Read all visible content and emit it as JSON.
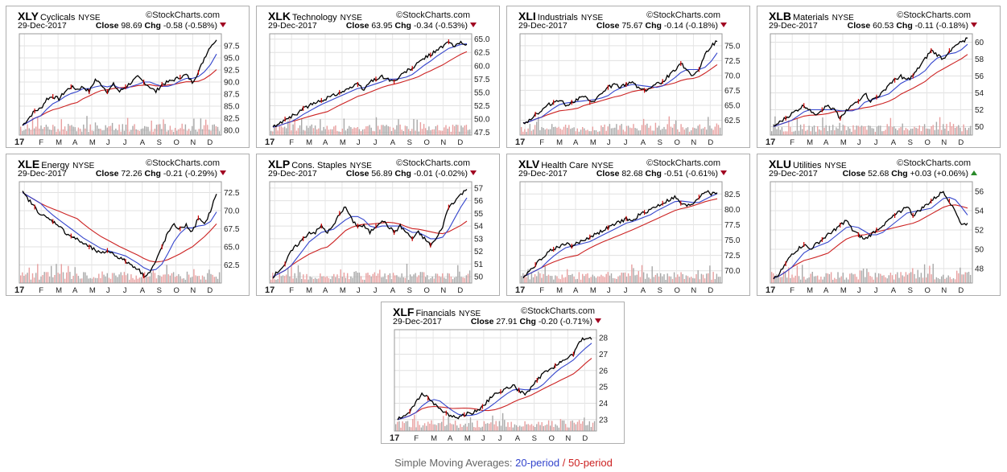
{
  "brand": "StockCharts.com",
  "legend": {
    "prefix": "Simple Moving Averages:",
    "fast": "20-period",
    "sep": "/",
    "slow": "50-period",
    "fast_color": "#3344cc",
    "slow_color": "#cc2222"
  },
  "x_labels": [
    "17",
    "F",
    "M",
    "A",
    "M",
    "J",
    "J",
    "A",
    "S",
    "O",
    "N",
    "D"
  ],
  "chart_data": [
    {
      "type": "line",
      "symbol": "XLY",
      "name": "Cyclicals",
      "exchange": "NYSE",
      "date": "29-Dec-2017",
      "close": "98.69",
      "change": "-0.58 (-0.58%)",
      "direction": "down",
      "ylim": [
        79,
        100
      ],
      "y_ticks": [
        "97.5",
        "95.0",
        "92.5",
        "90.0",
        "87.5",
        "85.0",
        "82.5",
        "80.0"
      ],
      "price": [
        81,
        82.5,
        84,
        84.5,
        86.5,
        87,
        86.5,
        88,
        89,
        88.5,
        89,
        88,
        90.5,
        89.5,
        88,
        89.5,
        88,
        89,
        90,
        91,
        90,
        89,
        88,
        89.5,
        90,
        90.5,
        91,
        91.5,
        90,
        92,
        95,
        97.5,
        98.7
      ]
    },
    {
      "type": "line",
      "symbol": "XLK",
      "name": "Technology",
      "exchange": "NYSE",
      "date": "29-Dec-2017",
      "close": "63.95",
      "change": "-0.34 (-0.53%)",
      "direction": "down",
      "ylim": [
        47,
        66
      ],
      "y_ticks": [
        "65.0",
        "62.5",
        "60.0",
        "57.5",
        "55.0",
        "52.5",
        "50.0",
        "47.5"
      ],
      "price": [
        48.5,
        49,
        50,
        50.5,
        51,
        52,
        52.5,
        53,
        53.5,
        54,
        54.5,
        55,
        55.5,
        56,
        56.5,
        55.5,
        57,
        57.5,
        58,
        57.5,
        57,
        58,
        59,
        59.5,
        60.5,
        61.5,
        62,
        63,
        63.5,
        64.5,
        63.5,
        64.5,
        64
      ]
    },
    {
      "type": "line",
      "symbol": "XLI",
      "name": "Industrials",
      "exchange": "NYSE",
      "date": "29-Dec-2017",
      "close": "75.67",
      "change": "-0.14 (-0.18%)",
      "direction": "down",
      "ylim": [
        60,
        77
      ],
      "y_ticks": [
        "75.0",
        "72.5",
        "70.0",
        "67.5",
        "65.0",
        "62.5"
      ],
      "price": [
        62,
        62.5,
        63.5,
        64,
        65,
        65.5,
        66,
        65,
        65.5,
        66,
        66.5,
        65.5,
        66,
        67,
        68,
        68.5,
        68,
        68.5,
        69,
        68,
        67.5,
        68,
        68.5,
        69,
        70,
        71,
        72,
        71,
        70,
        71,
        73.5,
        75,
        75.7
      ]
    },
    {
      "type": "line",
      "symbol": "XLB",
      "name": "Materials",
      "exchange": "NYSE",
      "date": "29-Dec-2017",
      "close": "60.53",
      "change": "-0.11 (-0.18%)",
      "direction": "down",
      "ylim": [
        49,
        61
      ],
      "y_ticks": [
        "60",
        "58",
        "56",
        "54",
        "52",
        "50"
      ],
      "price": [
        50,
        50.5,
        51,
        51.5,
        52,
        52.5,
        52,
        51.5,
        52,
        52.5,
        52,
        51,
        52,
        52.5,
        53,
        54,
        53,
        53.5,
        54,
        55,
        55.5,
        56,
        55.5,
        56,
        57,
        58,
        59,
        58.5,
        58,
        59,
        59.5,
        60,
        60.5
      ]
    },
    {
      "type": "line",
      "symbol": "XLE",
      "name": "Energy",
      "exchange": "NYSE",
      "date": "29-Dec-2017",
      "close": "72.26",
      "change": "-0.21 (-0.29%)",
      "direction": "down",
      "ylim": [
        60,
        74
      ],
      "y_ticks": [
        "72.5",
        "70.0",
        "67.5",
        "65.0",
        "62.5"
      ],
      "price": [
        72.5,
        71.5,
        70.5,
        69.5,
        69,
        68.5,
        68,
        67,
        66.5,
        66,
        65.5,
        65,
        64.5,
        64,
        64.5,
        64,
        63.5,
        63,
        62.5,
        62,
        61,
        61.5,
        63,
        65,
        67,
        68,
        67.5,
        68,
        67,
        69,
        68,
        70,
        72.3
      ]
    },
    {
      "type": "line",
      "symbol": "XLP",
      "name": "Cons. Staples",
      "exchange": "NYSE",
      "date": "29-Dec-2017",
      "close": "56.89",
      "change": "-0.01 (-0.02%)",
      "direction": "down",
      "ylim": [
        49.5,
        57.5
      ],
      "y_ticks": [
        "57",
        "56",
        "55",
        "54",
        "53",
        "52",
        "51",
        "50"
      ],
      "price": [
        50,
        50.5,
        51,
        52,
        52.5,
        53,
        53.5,
        53.5,
        54,
        53.5,
        54,
        55,
        55.5,
        54.5,
        54,
        54,
        53.5,
        54,
        54.5,
        54,
        53.5,
        54,
        53.5,
        53,
        53.5,
        53,
        52.5,
        53,
        54,
        55.5,
        56,
        56.5,
        56.9
      ]
    },
    {
      "type": "line",
      "symbol": "XLV",
      "name": "Health Care",
      "exchange": "NYSE",
      "date": "29-Dec-2017",
      "close": "82.68",
      "change": "-0.51 (-0.61%)",
      "direction": "down",
      "ylim": [
        68,
        84.5
      ],
      "y_ticks": [
        "82.5",
        "80.0",
        "77.5",
        "75.0",
        "72.5",
        "70.0"
      ],
      "price": [
        69,
        70,
        71,
        72,
        73,
        73.5,
        74,
        74.5,
        74,
        74.5,
        75,
        75.5,
        76,
        76.5,
        77,
        77.5,
        78,
        78.5,
        78,
        79,
        79.5,
        80,
        80.5,
        81,
        81.5,
        82,
        81,
        80.5,
        81,
        82,
        83,
        82.5,
        82.7
      ]
    },
    {
      "type": "line",
      "symbol": "XLU",
      "name": "Utilities",
      "exchange": "NYSE",
      "date": "29-Dec-2017",
      "close": "52.68",
      "change": "+0.03 (+0.06%)",
      "direction": "up",
      "ylim": [
        46.5,
        57
      ],
      "y_ticks": [
        "56",
        "54",
        "52",
        "50",
        "48"
      ],
      "price": [
        47,
        47.5,
        48.5,
        49.5,
        50,
        50.5,
        50,
        50.5,
        51,
        51.5,
        52,
        52.5,
        53,
        52,
        51.5,
        51,
        51.5,
        52,
        52.5,
        53,
        53.5,
        54,
        54.5,
        53.5,
        54,
        54.5,
        55,
        55.5,
        56,
        55,
        54,
        52.5,
        52.7
      ]
    },
    {
      "type": "line",
      "symbol": "XLF",
      "name": "Financials",
      "exchange": "NYSE",
      "date": "29-Dec-2017",
      "close": "27.91",
      "change": "-0.20 (-0.71%)",
      "direction": "down",
      "ylim": [
        22.3,
        28.5
      ],
      "y_ticks": [
        "28",
        "27",
        "26",
        "25",
        "24",
        "23"
      ],
      "price": [
        23,
        23.2,
        23.5,
        24,
        24.6,
        24.3,
        24,
        23.6,
        23.4,
        23.2,
        23.1,
        23.3,
        23.4,
        23.5,
        23.8,
        24.2,
        24.5,
        24.7,
        24.9,
        25.1,
        24.8,
        24.5,
        24.9,
        25.4,
        25.8,
        26,
        26.3,
        26.6,
        26.7,
        27,
        27.8,
        28,
        27.9
      ]
    }
  ]
}
